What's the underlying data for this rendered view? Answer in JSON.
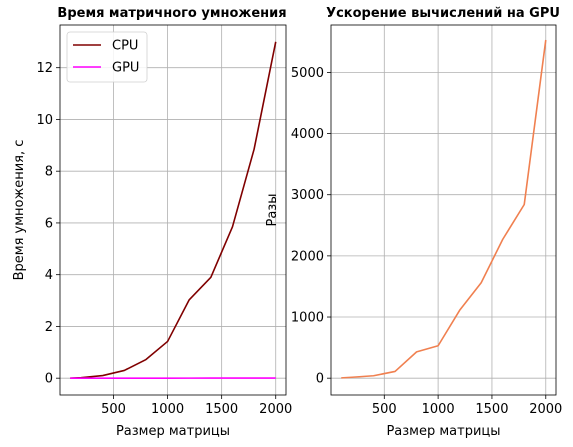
{
  "chart_data": [
    {
      "type": "line",
      "title": "Время матричного умножения",
      "xlabel": "Размер матрицы",
      "ylabel": "Время умножения, с",
      "xlim": [
        5,
        2095
      ],
      "ylim": [
        -0.65,
        13.65
      ],
      "xticks": [
        500,
        1000,
        1500,
        2000
      ],
      "yticks": [
        0,
        2,
        4,
        6,
        8,
        10,
        12
      ],
      "grid": true,
      "legend": "top-left",
      "x": [
        100,
        200,
        400,
        600,
        800,
        1000,
        1200,
        1400,
        1600,
        1800,
        2000
      ],
      "series": [
        {
          "name": "CPU",
          "color": "#800000",
          "values": [
            0.001,
            0.02,
            0.1,
            0.3,
            0.72,
            1.42,
            3.03,
            3.9,
            5.85,
            8.85,
            13.0
          ]
        },
        {
          "name": "GPU",
          "color": "#ff00ff",
          "values": [
            0.0005,
            0.0006,
            0.0008,
            0.001,
            0.0013,
            0.0018,
            0.0024,
            0.003,
            0.0038,
            0.0045,
            0.0055
          ]
        }
      ]
    },
    {
      "type": "line",
      "title": "Ускорение вычислений на GPU",
      "xlabel": "Размер матрицы",
      "ylabel": "Разы",
      "xlim": [
        5,
        2095
      ],
      "ylim": [
        -275,
        5775
      ],
      "xticks": [
        500,
        1000,
        1500,
        2000
      ],
      "yticks": [
        0,
        1000,
        2000,
        3000,
        4000,
        5000
      ],
      "grid": true,
      "x": [
        100,
        200,
        400,
        600,
        800,
        1000,
        1200,
        1400,
        1600,
        1800,
        2000
      ],
      "series": [
        {
          "color": "#f08050",
          "values": [
            5,
            15,
            40,
            110,
            430,
            530,
            1110,
            1560,
            2270,
            2840,
            5530
          ]
        }
      ]
    }
  ]
}
